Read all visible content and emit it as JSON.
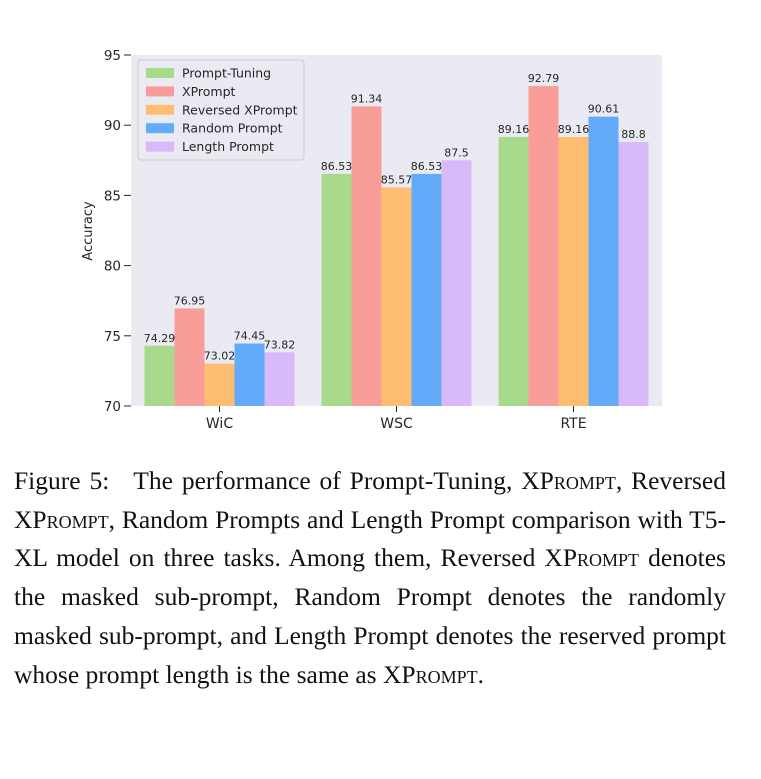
{
  "chart_data": {
    "type": "bar",
    "categories": [
      "WiC",
      "WSC",
      "RTE"
    ],
    "series": [
      {
        "name": "Prompt-Tuning",
        "color": "#a9d98a",
        "values": [
          74.29,
          86.53,
          89.16
        ],
        "labels": [
          "74.29",
          "86.53",
          "89.16"
        ]
      },
      {
        "name": "XPrompt",
        "color": "#f99d98",
        "values": [
          76.95,
          91.34,
          92.79
        ],
        "labels": [
          "76.95",
          "91.34",
          "92.79"
        ]
      },
      {
        "name": "Reversed XPrompt",
        "color": "#fdbe72",
        "values": [
          73.02,
          85.57,
          89.16
        ],
        "labels": [
          "73.02",
          "85.57",
          "89.16"
        ]
      },
      {
        "name": "Random Prompt",
        "color": "#63aaf9",
        "values": [
          74.45,
          86.53,
          90.61
        ],
        "labels": [
          "74.45",
          "86.53",
          "90.61"
        ]
      },
      {
        "name": "Length Prompt",
        "color": "#d8b9f9",
        "values": [
          73.82,
          87.5,
          88.8
        ],
        "labels": [
          "73.82",
          "87.5",
          "88.8"
        ]
      }
    ],
    "ylabel": "Accuracy",
    "xlabel": "",
    "ylim": [
      70,
      95
    ],
    "yticks": [
      70,
      75,
      80,
      85,
      90,
      95
    ],
    "ytick_labels": [
      "70",
      "75",
      "80",
      "85",
      "90",
      "95"
    ],
    "legend_position": "top-left",
    "grid": false,
    "background": "#eaeaf2"
  },
  "caption": {
    "label": "Figure 5:",
    "parts": [
      {
        "t": "The performance of Prompt-Tuning, "
      },
      {
        "t": "XP",
        "sc": false
      },
      {
        "t": "rompt",
        "sc": true
      },
      {
        "t": ", Reversed "
      },
      {
        "t": "XP"
      },
      {
        "t": "rompt",
        "sc": true
      },
      {
        "t": ", Random Prompts and Length Prompt comparison with T5-XL model on three tasks. Among them, Reversed "
      },
      {
        "t": "XP"
      },
      {
        "t": "rompt",
        "sc": true
      },
      {
        "t": " denotes the masked sub-prompt, Random Prompt denotes the randomly masked sub-prompt, and Length Prompt denotes the reserved prompt whose prompt length is the same as "
      },
      {
        "t": "XP"
      },
      {
        "t": "rompt",
        "sc": true
      },
      {
        "t": "."
      }
    ]
  }
}
